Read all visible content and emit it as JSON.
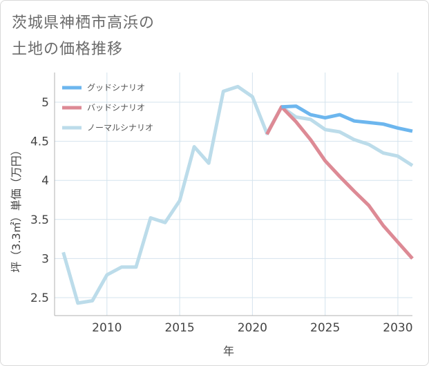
{
  "title_lines": [
    "茨城県神栖市高浜の",
    "土地の価格推移"
  ],
  "colors": {
    "good": "#6cb6ee",
    "bad": "#dd8a95",
    "normal": "#bcdcea",
    "grid": "#d4e3ed",
    "axis": "#b0b0b0"
  },
  "chart_data": {
    "type": "line",
    "xlabel": "年",
    "ylabel": "坪（3.3㎡）単価（万円）",
    "xlim": [
      2006.4,
      2031
    ],
    "ylim": [
      2.27,
      5.38
    ],
    "xticks": [
      2010,
      2015,
      2020,
      2025,
      2030
    ],
    "yticks": [
      2.5,
      3,
      3.5,
      4,
      4.5,
      5
    ],
    "ytick_labels": [
      "2.5",
      "3",
      "3.5",
      "4",
      "4.5",
      "5"
    ],
    "grid": true,
    "legend_position": "top-left",
    "series": [
      {
        "name": "グッドシナリオ",
        "color_key": "good",
        "x": [
          2022,
          2023,
          2024,
          2025,
          2026,
          2027,
          2028,
          2029,
          2030,
          2031
        ],
        "y": [
          4.94,
          4.95,
          4.84,
          4.8,
          4.84,
          4.76,
          4.74,
          4.72,
          4.67,
          4.63
        ]
      },
      {
        "name": "バッドシナリオ",
        "color_key": "bad",
        "x": [
          2021,
          2022,
          2023,
          2024,
          2025,
          2026,
          2027,
          2028,
          2029,
          2030,
          2031
        ],
        "y": [
          4.59,
          4.94,
          4.75,
          4.52,
          4.25,
          4.05,
          3.86,
          3.68,
          3.42,
          3.21,
          3.0
        ]
      },
      {
        "name": "ノーマルシナリオ",
        "color_key": "normal",
        "x": [
          2007,
          2008,
          2009,
          2010,
          2011,
          2012,
          2013,
          2014,
          2015,
          2016,
          2017,
          2018,
          2019,
          2020,
          2021,
          2022,
          2023,
          2024,
          2025,
          2026,
          2027,
          2028,
          2029,
          2030,
          2031
        ],
        "y": [
          3.08,
          2.43,
          2.46,
          2.79,
          2.89,
          2.89,
          3.52,
          3.46,
          3.74,
          4.43,
          4.22,
          5.14,
          5.2,
          5.07,
          4.6,
          4.94,
          4.81,
          4.78,
          4.65,
          4.62,
          4.52,
          4.46,
          4.35,
          4.31,
          4.19
        ]
      }
    ]
  }
}
